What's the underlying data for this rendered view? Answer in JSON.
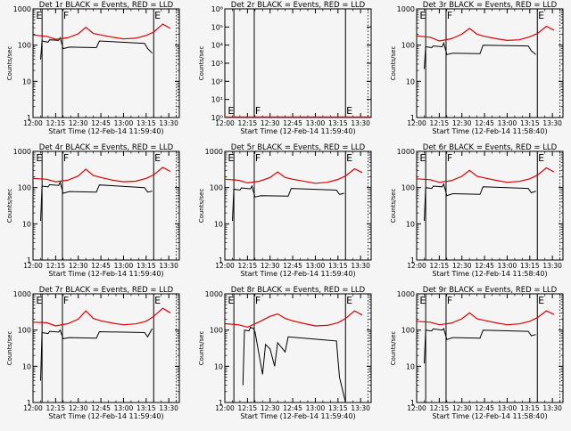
{
  "chart_data": [
    {
      "type": "line",
      "title": "Det 1r BLACK = Events, RED = LLD",
      "xlabel": "Start Time (12-Feb-14 11:59:40)",
      "ylabel": "Counts/sec",
      "y_scale": "log",
      "ylim": [
        1,
        1000
      ],
      "yticks": [
        "1",
        "10",
        "100",
        "1000"
      ],
      "xticks": [
        "12:00",
        "12:15",
        "12:30",
        "12:45",
        "13:00",
        "13:15",
        "13:30"
      ],
      "markers": [
        "E",
        "F",
        "E"
      ],
      "series": [
        {
          "color": "#000000",
          "x": [
            "12:05",
            "12:06",
            "12:10",
            "12:11",
            "12:17",
            "12:18",
            "12:20",
            "12:24",
            "12:42",
            "12:44",
            "13:14",
            "13:16",
            "13:19"
          ],
          "y": [
            40,
            130,
            120,
            140,
            135,
            160,
            80,
            88,
            85,
            130,
            112,
            80,
            60
          ]
        },
        {
          "color": "#e00000",
          "x": [
            "12:00",
            "12:09",
            "12:15",
            "12:23",
            "12:30",
            "12:35",
            "12:40",
            "12:45",
            "12:53",
            "13:00",
            "13:08",
            "13:15",
            "13:20",
            "13:26",
            "13:31"
          ],
          "y": [
            190,
            175,
            145,
            160,
            205,
            310,
            210,
            190,
            165,
            148,
            155,
            185,
            230,
            380,
            290
          ]
        }
      ]
    },
    {
      "type": "line",
      "title": "Det 2r BLACK = Events, RED = LLD",
      "xlabel": "Start Time (12-Feb-14 11:59:40)",
      "ylabel": "Counts/sec",
      "y_scale": "log",
      "ylim": [
        1,
        1000000
      ],
      "yticks": [
        "10⁰",
        "10¹",
        "10²",
        "10³",
        "10⁴",
        "10⁵",
        "10⁶"
      ],
      "xticks": [
        "12:00",
        "12:15",
        "12:30",
        "12:45",
        "13:00",
        "13:15",
        "13:30"
      ],
      "markers": [
        "E",
        "F",
        "E"
      ],
      "series": []
    },
    {
      "type": "line",
      "title": "Det 3r BLACK = Events, RED = LLD",
      "xlabel": "Start Time (12-Feb-14 11:58:40)",
      "ylabel": "Counts/sec",
      "y_scale": "log",
      "ylim": [
        1,
        1000
      ],
      "yticks": [
        "1",
        "10",
        "100",
        "1000"
      ],
      "xticks": [
        "12:00",
        "12:15",
        "12:30",
        "12:45",
        "13:00",
        "13:15",
        "13:30"
      ],
      "markers": [
        "E",
        "F",
        "E"
      ],
      "series": [
        {
          "color": "#000000",
          "x": [
            "12:05",
            "12:06",
            "12:10",
            "12:11",
            "12:17",
            "12:18",
            "12:20",
            "12:24",
            "12:42",
            "12:44",
            "13:14",
            "13:16",
            "13:19"
          ],
          "y": [
            22,
            90,
            85,
            95,
            90,
            115,
            55,
            60,
            58,
            100,
            95,
            70,
            55
          ]
        },
        {
          "color": "#e00000",
          "x": [
            "12:00",
            "12:09",
            "12:15",
            "12:23",
            "12:30",
            "12:35",
            "12:40",
            "12:45",
            "12:53",
            "13:00",
            "13:08",
            "13:15",
            "13:20",
            "13:26",
            "13:31"
          ],
          "y": [
            180,
            165,
            130,
            150,
            200,
            290,
            200,
            175,
            150,
            135,
            140,
            170,
            210,
            330,
            260
          ]
        }
      ]
    },
    {
      "type": "line",
      "title": "Det 4r BLACK = Events, RED = LLD",
      "xlabel": "Start Time (12-Feb-14 11:59:40)",
      "ylabel": "Counts/sec",
      "y_scale": "log",
      "ylim": [
        1,
        1000
      ],
      "yticks": [
        "1",
        "10",
        "100",
        "1000"
      ],
      "xticks": [
        "12:00",
        "12:15",
        "12:30",
        "12:45",
        "13:00",
        "13:15",
        "13:30"
      ],
      "markers": [
        "E",
        "F",
        "E"
      ],
      "series": [
        {
          "color": "#000000",
          "x": [
            "12:05",
            "12:06",
            "12:10",
            "12:11",
            "12:17",
            "12:18",
            "12:20",
            "12:24",
            "12:42",
            "12:44",
            "13:14",
            "13:16",
            "13:19"
          ],
          "y": [
            12,
            110,
            105,
            120,
            115,
            140,
            70,
            78,
            75,
            118,
            100,
            75,
            80
          ]
        },
        {
          "color": "#e00000",
          "x": [
            "12:00",
            "12:09",
            "12:15",
            "12:23",
            "12:30",
            "12:35",
            "12:40",
            "12:45",
            "12:53",
            "13:00",
            "13:08",
            "13:15",
            "13:20",
            "13:26",
            "13:31"
          ],
          "y": [
            180,
            170,
            145,
            160,
            210,
            320,
            215,
            190,
            160,
            145,
            150,
            180,
            225,
            360,
            280
          ]
        }
      ]
    },
    {
      "type": "line",
      "title": "Det 5r BLACK = Events, RED = LLD",
      "xlabel": "Start Time (12-Feb-14 11:59:40)",
      "ylabel": "Counts/sec",
      "y_scale": "log",
      "ylim": [
        1,
        1000
      ],
      "yticks": [
        "1",
        "10",
        "100",
        "1000"
      ],
      "xticks": [
        "12:00",
        "12:15",
        "12:30",
        "12:45",
        "13:00",
        "13:15",
        "13:30"
      ],
      "markers": [
        "E",
        "F",
        "E"
      ],
      "series": [
        {
          "color": "#000000",
          "x": [
            "12:05",
            "12:06",
            "12:10",
            "12:11",
            "12:17",
            "12:18",
            "12:20",
            "12:24",
            "12:42",
            "12:44",
            "13:14",
            "13:16",
            "13:19"
          ],
          "y": [
            12,
            90,
            85,
            98,
            92,
            110,
            55,
            60,
            58,
            95,
            85,
            65,
            70
          ]
        },
        {
          "color": "#e00000",
          "x": [
            "12:00",
            "12:09",
            "12:15",
            "12:23",
            "12:30",
            "12:35",
            "12:40",
            "12:45",
            "12:53",
            "13:00",
            "13:08",
            "13:15",
            "13:20",
            "13:26",
            "13:31"
          ],
          "y": [
            170,
            160,
            135,
            150,
            190,
            270,
            190,
            170,
            148,
            132,
            140,
            168,
            210,
            330,
            260
          ]
        }
      ]
    },
    {
      "type": "line",
      "title": "Det 6r BLACK = Events, RED = LLD",
      "xlabel": "Start Time (12-Feb-14 11:58:40)",
      "ylabel": "Counts/sec",
      "y_scale": "log",
      "ylim": [
        1,
        1000
      ],
      "yticks": [
        "1",
        "10",
        "100",
        "1000"
      ],
      "xticks": [
        "12:00",
        "12:15",
        "12:30",
        "12:45",
        "13:00",
        "13:15",
        "13:30"
      ],
      "markers": [
        "E",
        "F",
        "E"
      ],
      "series": [
        {
          "color": "#000000",
          "x": [
            "12:05",
            "12:06",
            "12:10",
            "12:11",
            "12:17",
            "12:18",
            "12:20",
            "12:24",
            "12:42",
            "12:44",
            "13:14",
            "13:16",
            "13:19"
          ],
          "y": [
            12,
            100,
            95,
            110,
            105,
            125,
            60,
            68,
            65,
            105,
            95,
            72,
            80
          ]
        },
        {
          "color": "#e00000",
          "x": [
            "12:00",
            "12:09",
            "12:15",
            "12:23",
            "12:30",
            "12:35",
            "12:40",
            "12:45",
            "12:53",
            "13:00",
            "13:08",
            "13:15",
            "13:20",
            "13:26",
            "13:31"
          ],
          "y": [
            175,
            165,
            140,
            155,
            205,
            300,
            205,
            185,
            158,
            140,
            148,
            175,
            220,
            350,
            270
          ]
        }
      ]
    },
    {
      "type": "line",
      "title": "Det 7r BLACK = Events, RED = LLD",
      "xlabel": "Start Time (12-Feb-14 11:59:40)",
      "ylabel": "Counts/sec",
      "y_scale": "log",
      "ylim": [
        1,
        1000
      ],
      "yticks": [
        "1",
        "10",
        "100",
        "1000"
      ],
      "xticks": [
        "12:00",
        "12:15",
        "12:30",
        "12:45",
        "13:00",
        "13:15",
        "13:30"
      ],
      "markers": [
        "E",
        "F",
        "E"
      ],
      "series": [
        {
          "color": "#000000",
          "x": [
            "12:05",
            "12:06",
            "12:10",
            "12:11",
            "12:17",
            "12:18",
            "12:20",
            "12:24",
            "12:42",
            "12:44",
            "13:14",
            "13:16",
            "13:19"
          ],
          "y": [
            4,
            85,
            80,
            92,
            88,
            100,
            58,
            62,
            60,
            90,
            85,
            65,
            110
          ]
        },
        {
          "color": "#e00000",
          "x": [
            "12:00",
            "12:09",
            "12:15",
            "12:23",
            "12:30",
            "12:35",
            "12:40",
            "12:45",
            "12:53",
            "13:00",
            "13:08",
            "13:15",
            "13:20",
            "13:26",
            "13:31"
          ],
          "y": [
            165,
            160,
            130,
            150,
            200,
            340,
            210,
            180,
            155,
            140,
            148,
            175,
            240,
            400,
            300
          ]
        }
      ]
    },
    {
      "type": "line",
      "title": "Det 8r BLACK = Events, RED = LLD",
      "xlabel": "Start Time (12-Feb-14 11:59:40)",
      "ylabel": "Counts/sec",
      "y_scale": "log",
      "ylim": [
        1,
        1000
      ],
      "yticks": [
        "1",
        "10",
        "100",
        "1000"
      ],
      "xticks": [
        "12:00",
        "12:15",
        "12:30",
        "12:45",
        "13:00",
        "13:15",
        "13:30"
      ],
      "markers": [
        "E",
        "F",
        "E"
      ],
      "series": [
        {
          "color": "#000000",
          "x": [
            "12:12",
            "12:13",
            "12:16",
            "12:17",
            "12:19",
            "12:20",
            "12:25",
            "12:27",
            "12:30",
            "12:33",
            "12:35",
            "12:40",
            "12:42",
            "13:14",
            "13:16",
            "13:20"
          ],
          "y": [
            3,
            100,
            95,
            120,
            110,
            90,
            6,
            40,
            30,
            10,
            45,
            25,
            65,
            50,
            5,
            1
          ]
        },
        {
          "color": "#e00000",
          "x": [
            "12:00",
            "12:09",
            "12:15",
            "12:23",
            "12:30",
            "12:35",
            "12:40",
            "12:45",
            "12:53",
            "13:00",
            "13:08",
            "13:15",
            "13:20",
            "13:26",
            "13:31"
          ],
          "y": [
            150,
            140,
            120,
            170,
            240,
            280,
            210,
            180,
            150,
            130,
            135,
            160,
            210,
            340,
            260
          ]
        }
      ]
    },
    {
      "type": "line",
      "title": "Det 9r BLACK = Events, RED = LLD",
      "xlabel": "Start Time (12-Feb-14 11:58:40)",
      "ylabel": "Counts/sec",
      "y_scale": "log",
      "ylim": [
        1,
        1000
      ],
      "yticks": [
        "1",
        "10",
        "100",
        "1000"
      ],
      "xticks": [
        "12:00",
        "12:15",
        "12:30",
        "12:45",
        "13:00",
        "13:15",
        "13:30"
      ],
      "markers": [
        "E",
        "F",
        "E"
      ],
      "series": [
        {
          "color": "#000000",
          "x": [
            "12:05",
            "12:06",
            "12:10",
            "12:11",
            "12:17",
            "12:18",
            "12:20",
            "12:24",
            "12:42",
            "12:44",
            "13:14",
            "13:16",
            "13:19"
          ],
          "y": [
            12,
            100,
            95,
            108,
            100,
            110,
            55,
            62,
            60,
            100,
            92,
            70,
            75
          ]
        },
        {
          "color": "#e00000",
          "x": [
            "12:00",
            "12:09",
            "12:15",
            "12:23",
            "12:30",
            "12:35",
            "12:40",
            "12:45",
            "12:53",
            "13:00",
            "13:08",
            "13:15",
            "13:20",
            "13:26",
            "13:31"
          ],
          "y": [
            175,
            165,
            140,
            155,
            205,
            300,
            205,
            185,
            158,
            140,
            148,
            175,
            220,
            340,
            270
          ]
        }
      ]
    }
  ]
}
